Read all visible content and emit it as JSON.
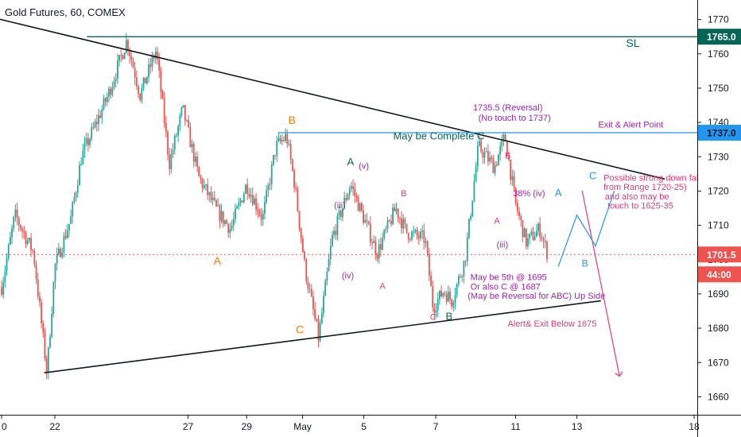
{
  "window": {
    "title": "Gold Futures, 60, COMEX"
  },
  "chart_data": {
    "type": "candlestick",
    "title": "Gold Futures, 60, COMEX",
    "ylim": [
      1655,
      1775
    ],
    "y_ticks": [
      1660,
      1670,
      1680,
      1690,
      1700,
      1710,
      1720,
      1730,
      1740,
      1750,
      1760,
      1770
    ],
    "x_ticks": [
      "0",
      "22",
      "27",
      "29",
      "May",
      "5",
      "7",
      "11",
      "13",
      "18"
    ],
    "x_tick_pos": [
      0,
      2,
      7,
      9.2,
      11.3,
      13.6,
      16.3,
      19.3,
      21.6,
      26
    ],
    "grid": false,
    "colors": {
      "up": "#26a69a",
      "down": "#ef5350",
      "sl": "#056656",
      "level": "#2196f3",
      "current": "#ef5350",
      "orange": "#f57c00"
    },
    "key_points": [
      {
        "x": 0,
        "y": 1692
      },
      {
        "x": 0.5,
        "y": 1713
      },
      {
        "x": 1.2,
        "y": 1702
      },
      {
        "x": 1.7,
        "y": 1667
      },
      {
        "x": 2.0,
        "y": 1698
      },
      {
        "x": 2.6,
        "y": 1712
      },
      {
        "x": 3.0,
        "y": 1730
      },
      {
        "x": 4.0,
        "y": 1748
      },
      {
        "x": 4.7,
        "y": 1764
      },
      {
        "x": 5.2,
        "y": 1748
      },
      {
        "x": 5.8,
        "y": 1761
      },
      {
        "x": 6.3,
        "y": 1728
      },
      {
        "x": 6.8,
        "y": 1744
      },
      {
        "x": 7.4,
        "y": 1724
      },
      {
        "x": 8.1,
        "y": 1714
      },
      {
        "x": 8.6,
        "y": 1709
      },
      {
        "x": 9.2,
        "y": 1722
      },
      {
        "x": 9.8,
        "y": 1712
      },
      {
        "x": 10.3,
        "y": 1733
      },
      {
        "x": 10.7,
        "y": 1736
      },
      {
        "x": 11.0,
        "y": 1722
      },
      {
        "x": 11.4,
        "y": 1697
      },
      {
        "x": 11.9,
        "y": 1677
      },
      {
        "x": 12.4,
        "y": 1706
      },
      {
        "x": 13.1,
        "y": 1722
      },
      {
        "x": 13.6,
        "y": 1712
      },
      {
        "x": 14.1,
        "y": 1702
      },
      {
        "x": 14.8,
        "y": 1715
      },
      {
        "x": 15.2,
        "y": 1708
      },
      {
        "x": 15.9,
        "y": 1706
      },
      {
        "x": 16.2,
        "y": 1686
      },
      {
        "x": 16.6,
        "y": 1691
      },
      {
        "x": 16.9,
        "y": 1688
      },
      {
        "x": 17.4,
        "y": 1700
      },
      {
        "x": 17.9,
        "y": 1733
      },
      {
        "x": 18.5,
        "y": 1727
      },
      {
        "x": 18.9,
        "y": 1736
      },
      {
        "x": 19.3,
        "y": 1716
      },
      {
        "x": 19.7,
        "y": 1705
      },
      {
        "x": 20.2,
        "y": 1709
      },
      {
        "x": 20.5,
        "y": 1701.5
      }
    ],
    "lines": [
      {
        "name": "resistance-trendline",
        "color": "#131722",
        "x1": -0.3,
        "y1": 1770.5,
        "x2": 24.9,
        "y2": 1723.5,
        "width": 1.6
      },
      {
        "name": "support-trendline",
        "color": "#131722",
        "x1": 1.6,
        "y1": 1667,
        "x2": 22.5,
        "y2": 1688,
        "width": 1.6
      },
      {
        "name": "sl-line",
        "color": "#056656",
        "x1": 3.2,
        "y1": 1765,
        "x2": 26.2,
        "y2": 1765,
        "width": 1.4
      },
      {
        "name": "exit-line",
        "color": "#2196f3",
        "x1": 10.4,
        "y1": 1737,
        "x2": 26.2,
        "y2": 1737,
        "width": 1.2
      },
      {
        "name": "current-price-line",
        "color": "#ef5350",
        "x1": 0,
        "y1": 1701.5,
        "x2": 26.2,
        "y2": 1701.5,
        "width": 1,
        "dash": "2,3"
      },
      {
        "name": "down-arrow",
        "color": "#e53975",
        "x1": 21.8,
        "y1": 1720,
        "x2": 23.2,
        "y2": 1666,
        "width": 1.2,
        "arrow": true
      }
    ],
    "projection": {
      "color": "#2196f3",
      "points": [
        {
          "x": 20.9,
          "y": 1698
        },
        {
          "x": 21.6,
          "y": 1713
        },
        {
          "x": 22.3,
          "y": 1704
        },
        {
          "x": 23.0,
          "y": 1720
        }
      ]
    },
    "annotations": [
      {
        "text": "SL",
        "x": 23.7,
        "y": 1762,
        "color": "#056656",
        "size": 14
      },
      {
        "text": "B",
        "x": 10.9,
        "y": 1739.5,
        "color": "#f57c00",
        "size": 14
      },
      {
        "text": "A",
        "x": 8.1,
        "y": 1698.5,
        "color": "#f57c00",
        "size": 14
      },
      {
        "text": "C",
        "x": 11.2,
        "y": 1678.5,
        "color": "#f57c00",
        "size": 14
      },
      {
        "text": "A",
        "x": 13.1,
        "y": 1727.5,
        "color": "#056656",
        "size": 13
      },
      {
        "text": "(v)",
        "x": 13.6,
        "y": 1726.5,
        "color": "#9c27b0",
        "size": 11
      },
      {
        "text": "(iii)",
        "x": 12.7,
        "y": 1715,
        "color": "#9c27b0",
        "size": 11
      },
      {
        "text": "(iv)",
        "x": 13.0,
        "y": 1694.5,
        "color": "#9c27b0",
        "size": 11
      },
      {
        "text": "B",
        "x": 15.1,
        "y": 1718.5,
        "color": "#e53975",
        "size": 11
      },
      {
        "text": "A",
        "x": 14.3,
        "y": 1691.5,
        "color": "#e53975",
        "size": 11
      },
      {
        "text": "C",
        "x": 16.2,
        "y": 1682.5,
        "color": "#e53975",
        "size": 11
      },
      {
        "text": "B",
        "x": 16.8,
        "y": 1682.5,
        "color": "#056656",
        "size": 13
      },
      {
        "text": "May be Complete C",
        "x": 14.7,
        "y": 1735,
        "color": "#056656",
        "size": 13,
        "anchor": "start"
      },
      {
        "text": "1735.5 (Reversal)",
        "x": 17.7,
        "y": 1743.5,
        "color": "#9c27b0",
        "size": 11,
        "anchor": "start"
      },
      {
        "text": "(No touch to 1737)",
        "x": 17.9,
        "y": 1740.5,
        "color": "#9c27b0",
        "size": 11,
        "anchor": "start"
      },
      {
        "text": "Exit & Alert Point",
        "x": 22.4,
        "y": 1738.5,
        "color": "#9c27b0",
        "size": 11,
        "anchor": "start"
      },
      {
        "text": "B",
        "x": 19.0,
        "y": 1729.5,
        "color": "#e53975",
        "size": 11
      },
      {
        "text": "A",
        "x": 18.6,
        "y": 1710.5,
        "color": "#e53975",
        "size": 11
      },
      {
        "text": "38% (iv)",
        "x": 19.2,
        "y": 1718.5,
        "color": "#9c27b0",
        "size": 11,
        "anchor": "start"
      },
      {
        "text": "(iii)",
        "x": 18.8,
        "y": 1703.5,
        "color": "#9c27b0",
        "size": 11
      },
      {
        "text": "A",
        "x": 20.9,
        "y": 1718.5,
        "color": "#2196f3",
        "size": 13
      },
      {
        "text": "B",
        "x": 21.9,
        "y": 1698,
        "color": "#2196f3",
        "size": 12
      },
      {
        "text": "C",
        "x": 22.2,
        "y": 1723.5,
        "color": "#2196f3",
        "size": 13
      },
      {
        "text": "Possible strong down fall,",
        "x": 22.6,
        "y": 1723,
        "color": "#e53975",
        "size": 11,
        "anchor": "start"
      },
      {
        "text": "from Range  1720-25)",
        "x": 22.6,
        "y": 1720.3,
        "color": "#e53975",
        "size": 11,
        "anchor": "start"
      },
      {
        "text": "and also may be",
        "x": 22.65,
        "y": 1717.6,
        "color": "#e53975",
        "size": 11,
        "anchor": "start"
      },
      {
        "text": "touch to 1625-35",
        "x": 22.75,
        "y": 1714.9,
        "color": "#e53975",
        "size": 11,
        "anchor": "start"
      },
      {
        "text": "May be 5th @ 1695",
        "x": 17.6,
        "y": 1694,
        "color": "#9c27b0",
        "size": 11,
        "anchor": "start"
      },
      {
        "text": "Or also C @ 1687",
        "x": 17.6,
        "y": 1691.3,
        "color": "#9c27b0",
        "size": 11,
        "anchor": "start"
      },
      {
        "text": "(May be Reversal for ABC) Up Side",
        "x": 17.5,
        "y": 1688.6,
        "color": "#9c27b0",
        "size": 11,
        "anchor": "start"
      },
      {
        "text": "Alert& Exit Below 1675",
        "x": 19.0,
        "y": 1680.5,
        "color": "#e53975",
        "size": 11,
        "anchor": "start"
      }
    ],
    "price_labels": [
      {
        "text": "1765.0",
        "y": 1765,
        "bg": "#056656",
        "fg": "#ffffff"
      },
      {
        "text": "1737.0",
        "y": 1737,
        "bg": "#2196f3",
        "fg": "#131722"
      },
      {
        "text": "1701.5",
        "y": 1701.5,
        "bg": "#ef5350",
        "fg": "#ffffff"
      },
      {
        "text": "44:00",
        "y": 1697.5,
        "bg": "#ef5350",
        "fg": "#ffffff"
      }
    ]
  }
}
